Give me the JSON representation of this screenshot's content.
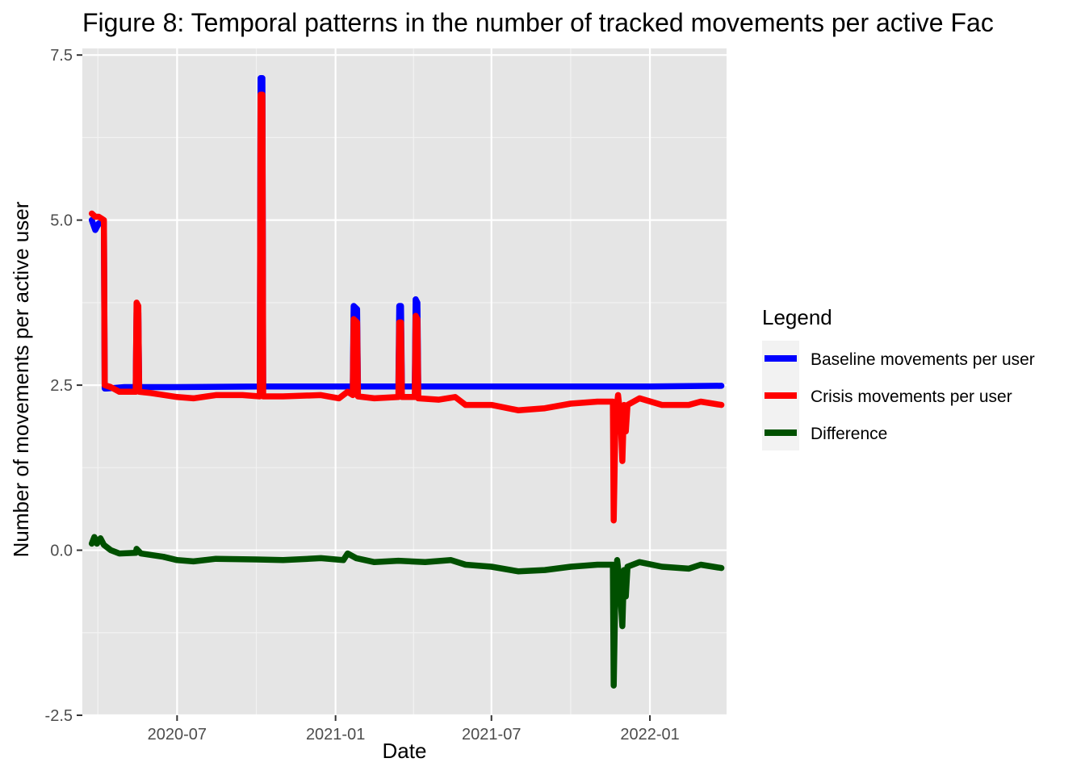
{
  "chart_data": {
    "type": "line",
    "title": "Figure 8: Temporal patterns in the number of tracked movements per active Fac",
    "xlabel": "Date",
    "ylabel": "Number of movements per active user",
    "ylim": [
      -2.5,
      7.6
    ],
    "y_ticks": [
      -2.5,
      0.0,
      2.5,
      5.0,
      7.5
    ],
    "y_tick_labels": [
      "-2.5",
      "0.0",
      "2.5",
      "5.0",
      "7.5"
    ],
    "x_ticks": [
      "2020-07-01",
      "2021-01-01",
      "2021-07-01",
      "2022-01-01"
    ],
    "x_tick_labels": [
      "2020-07",
      "2021-01",
      "2021-07",
      "2022-01"
    ],
    "xlim": [
      "2020-03-13",
      "2022-03-31"
    ],
    "grid": true,
    "legend": {
      "title": "Legend",
      "position": "right"
    },
    "series": [
      {
        "name": "Baseline movements per user",
        "color": "#0000ff",
        "points": [
          [
            "2020-03-24",
            5.0
          ],
          [
            "2020-03-28",
            4.85
          ],
          [
            "2020-04-01",
            4.95
          ],
          [
            "2020-04-07",
            4.95
          ],
          [
            "2020-04-08",
            2.45
          ],
          [
            "2020-04-10",
            2.45
          ],
          [
            "2020-05-01",
            2.47
          ],
          [
            "2020-05-14",
            2.47
          ],
          [
            "2020-05-15",
            3.6
          ],
          [
            "2020-05-17",
            3.6
          ],
          [
            "2020-05-18",
            2.47
          ],
          [
            "2020-07-01",
            2.47
          ],
          [
            "2020-10-05",
            2.48
          ],
          [
            "2020-10-06",
            7.15
          ],
          [
            "2020-10-08",
            7.15
          ],
          [
            "2020-10-09",
            2.48
          ],
          [
            "2021-01-01",
            2.48
          ],
          [
            "2021-01-21",
            2.48
          ],
          [
            "2021-01-22",
            3.7
          ],
          [
            "2021-01-26",
            3.65
          ],
          [
            "2021-01-27",
            2.48
          ],
          [
            "2021-03-15",
            2.48
          ],
          [
            "2021-03-16",
            3.7
          ],
          [
            "2021-03-18",
            3.7
          ],
          [
            "2021-03-19",
            2.48
          ],
          [
            "2021-04-03",
            2.48
          ],
          [
            "2021-04-04",
            3.8
          ],
          [
            "2021-04-06",
            3.75
          ],
          [
            "2021-04-07",
            2.48
          ],
          [
            "2021-07-01",
            2.48
          ],
          [
            "2022-01-01",
            2.48
          ],
          [
            "2022-03-25",
            2.49
          ]
        ]
      },
      {
        "name": "Crisis movements per user",
        "color": "#ff0000",
        "points": [
          [
            "2020-03-24",
            5.1
          ],
          [
            "2020-03-28",
            5.05
          ],
          [
            "2020-04-01",
            5.05
          ],
          [
            "2020-04-07",
            5.0
          ],
          [
            "2020-04-08",
            2.5
          ],
          [
            "2020-04-15",
            2.47
          ],
          [
            "2020-04-25",
            2.4
          ],
          [
            "2020-05-14",
            2.4
          ],
          [
            "2020-05-15",
            3.75
          ],
          [
            "2020-05-17",
            3.7
          ],
          [
            "2020-05-18",
            2.4
          ],
          [
            "2020-06-01",
            2.38
          ],
          [
            "2020-07-01",
            2.32
          ],
          [
            "2020-07-20",
            2.3
          ],
          [
            "2020-08-15",
            2.35
          ],
          [
            "2020-09-15",
            2.35
          ],
          [
            "2020-10-05",
            2.33
          ],
          [
            "2020-10-06",
            6.9
          ],
          [
            "2020-10-08",
            6.9
          ],
          [
            "2020-10-09",
            2.33
          ],
          [
            "2020-11-01",
            2.33
          ],
          [
            "2020-12-15",
            2.35
          ],
          [
            "2021-01-05",
            2.3
          ],
          [
            "2021-01-15",
            2.4
          ],
          [
            "2021-01-21",
            2.35
          ],
          [
            "2021-01-22",
            3.5
          ],
          [
            "2021-01-26",
            3.45
          ],
          [
            "2021-01-27",
            2.33
          ],
          [
            "2021-02-15",
            2.3
          ],
          [
            "2021-03-15",
            2.32
          ],
          [
            "2021-03-16",
            3.45
          ],
          [
            "2021-03-18",
            3.45
          ],
          [
            "2021-03-19",
            2.32
          ],
          [
            "2021-04-03",
            2.32
          ],
          [
            "2021-04-04",
            3.55
          ],
          [
            "2021-04-06",
            3.5
          ],
          [
            "2021-04-07",
            2.3
          ],
          [
            "2021-05-01",
            2.28
          ],
          [
            "2021-05-20",
            2.32
          ],
          [
            "2021-06-01",
            2.2
          ],
          [
            "2021-07-01",
            2.2
          ],
          [
            "2021-08-01",
            2.12
          ],
          [
            "2021-09-01",
            2.15
          ],
          [
            "2021-10-01",
            2.22
          ],
          [
            "2021-11-01",
            2.25
          ],
          [
            "2021-11-19",
            2.25
          ],
          [
            "2021-11-20",
            0.45
          ],
          [
            "2021-11-22",
            2.0
          ],
          [
            "2021-11-25",
            2.35
          ],
          [
            "2021-11-28",
            2.0
          ],
          [
            "2021-11-30",
            1.35
          ],
          [
            "2021-12-02",
            2.2
          ],
          [
            "2021-12-04",
            1.8
          ],
          [
            "2021-12-06",
            2.2
          ],
          [
            "2021-12-20",
            2.3
          ],
          [
            "2022-01-15",
            2.2
          ],
          [
            "2022-02-15",
            2.2
          ],
          [
            "2022-03-01",
            2.25
          ],
          [
            "2022-03-25",
            2.2
          ]
        ]
      },
      {
        "name": "Difference",
        "color": "#005000",
        "points": [
          [
            "2020-03-24",
            0.1
          ],
          [
            "2020-03-27",
            0.2
          ],
          [
            "2020-03-30",
            0.1
          ],
          [
            "2020-04-03",
            0.18
          ],
          [
            "2020-04-07",
            0.08
          ],
          [
            "2020-04-15",
            0.0
          ],
          [
            "2020-04-25",
            -0.05
          ],
          [
            "2020-05-14",
            -0.04
          ],
          [
            "2020-05-15",
            0.02
          ],
          [
            "2020-05-20",
            -0.05
          ],
          [
            "2020-06-15",
            -0.1
          ],
          [
            "2020-07-01",
            -0.15
          ],
          [
            "2020-07-20",
            -0.17
          ],
          [
            "2020-08-15",
            -0.13
          ],
          [
            "2020-10-01",
            -0.14
          ],
          [
            "2020-11-01",
            -0.15
          ],
          [
            "2020-12-15",
            -0.12
          ],
          [
            "2021-01-10",
            -0.15
          ],
          [
            "2021-01-15",
            -0.05
          ],
          [
            "2021-01-25",
            -0.12
          ],
          [
            "2021-02-15",
            -0.18
          ],
          [
            "2021-03-15",
            -0.16
          ],
          [
            "2021-04-15",
            -0.18
          ],
          [
            "2021-05-15",
            -0.15
          ],
          [
            "2021-06-01",
            -0.22
          ],
          [
            "2021-07-01",
            -0.25
          ],
          [
            "2021-08-01",
            -0.32
          ],
          [
            "2021-09-01",
            -0.3
          ],
          [
            "2021-10-01",
            -0.25
          ],
          [
            "2021-11-01",
            -0.22
          ],
          [
            "2021-11-19",
            -0.22
          ],
          [
            "2021-11-20",
            -2.05
          ],
          [
            "2021-11-22",
            -0.5
          ],
          [
            "2021-11-24",
            -0.15
          ],
          [
            "2021-11-27",
            -0.5
          ],
          [
            "2021-11-30",
            -1.15
          ],
          [
            "2021-12-02",
            -0.3
          ],
          [
            "2021-12-04",
            -0.7
          ],
          [
            "2021-12-06",
            -0.25
          ],
          [
            "2021-12-20",
            -0.18
          ],
          [
            "2022-01-15",
            -0.25
          ],
          [
            "2022-02-15",
            -0.28
          ],
          [
            "2022-03-01",
            -0.22
          ],
          [
            "2022-03-25",
            -0.27
          ]
        ]
      }
    ]
  }
}
